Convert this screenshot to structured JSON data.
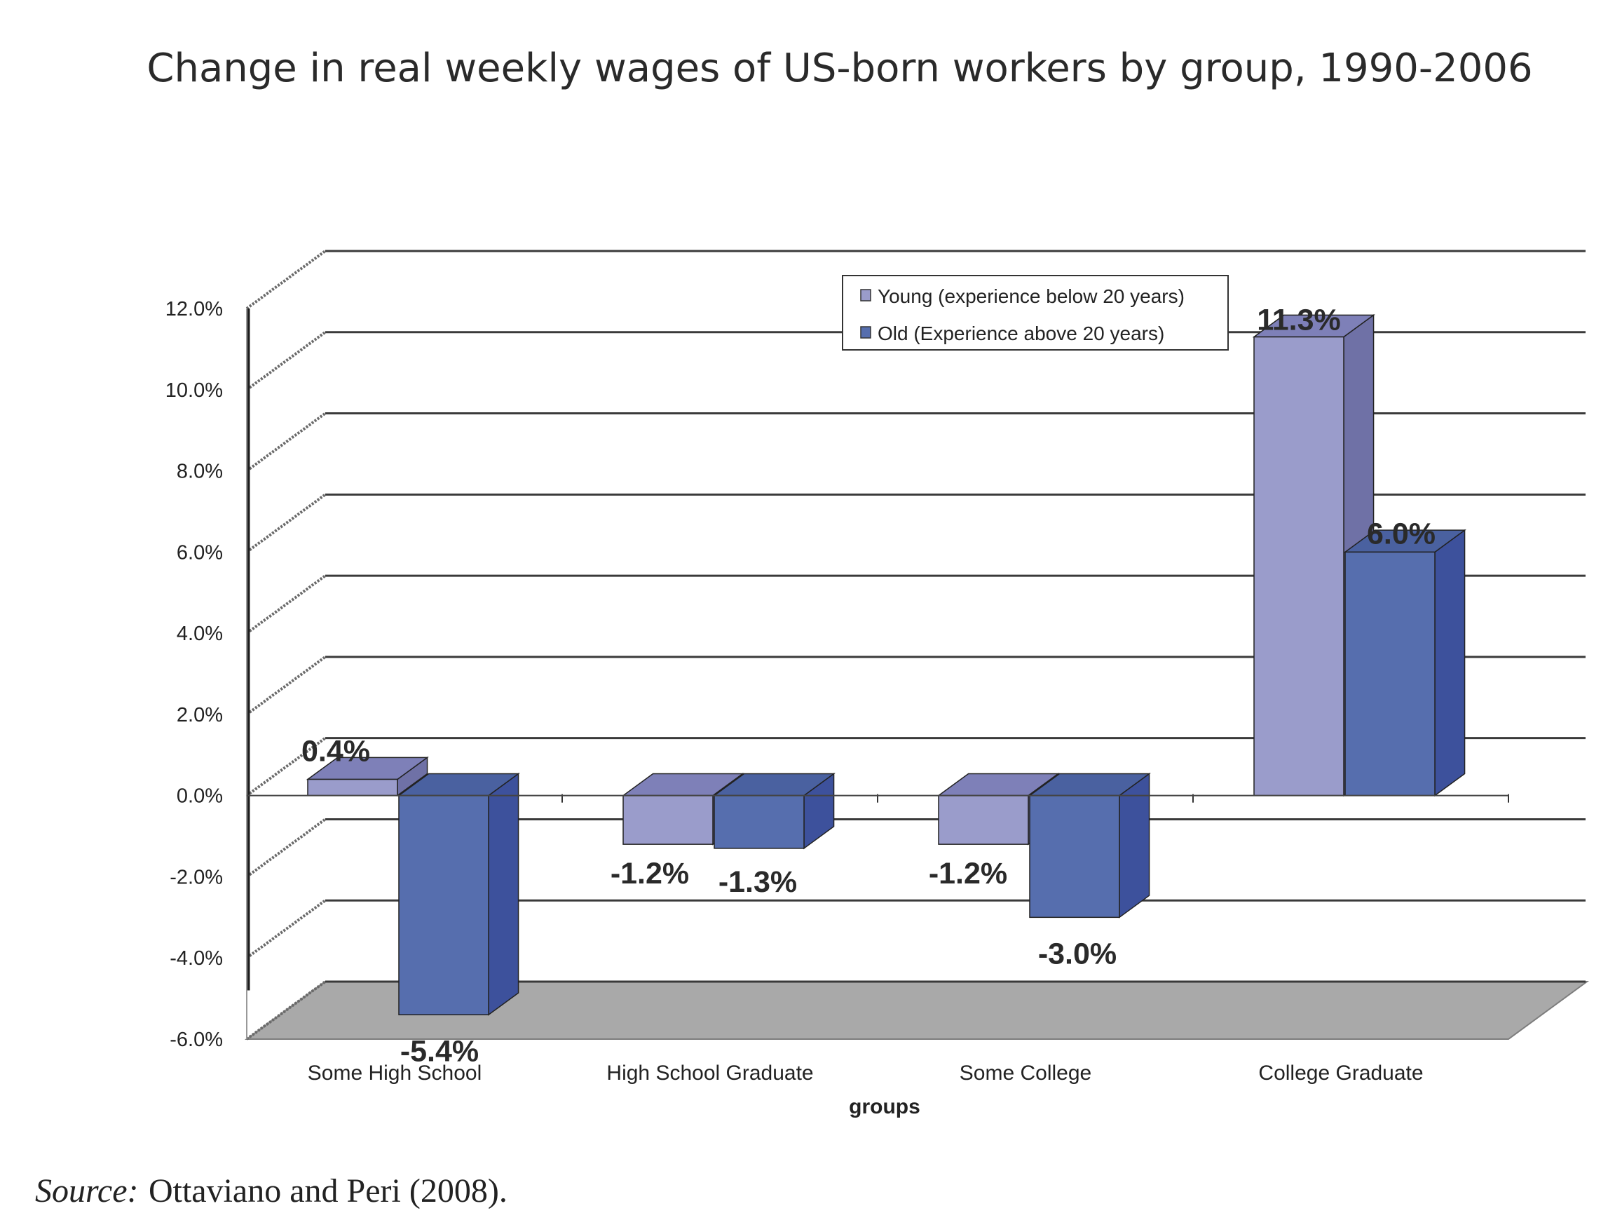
{
  "chart_data": {
    "type": "bar",
    "title": "Change in real weekly wages of US-born workers by group, 1990-2006",
    "xlabel": "groups",
    "ylabel": "",
    "categories": [
      "Some High School",
      "High School Graduate",
      "Some College",
      "College Graduate"
    ],
    "series": [
      {
        "name": "Young (experience below 20 years)",
        "values": [
          0.4,
          -1.2,
          -1.2,
          11.3
        ],
        "labels": [
          "0.4%",
          "-1.2%",
          "-1.2%",
          "11.3%"
        ],
        "color": "#9a9ccb"
      },
      {
        "name": "Old (Experience above 20 years)",
        "values": [
          -5.4,
          -1.3,
          -3.0,
          6.0
        ],
        "labels": [
          "-5.4%",
          "-1.3%",
          "-3.0%",
          "6.0%"
        ],
        "color": "#566eae"
      }
    ],
    "ylim": [
      -6,
      12
    ],
    "yticks": [
      "12.0%",
      "10.0%",
      "8.0%",
      "6.0%",
      "4.0%",
      "2.0%",
      "0.0%",
      "-2.0%",
      "-4.0%",
      "-6.0%"
    ],
    "grid": true,
    "legend_position": "top-right",
    "three_d": true
  },
  "source": {
    "label": "Source:",
    "text": "Ottaviano and Peri (2008)."
  }
}
